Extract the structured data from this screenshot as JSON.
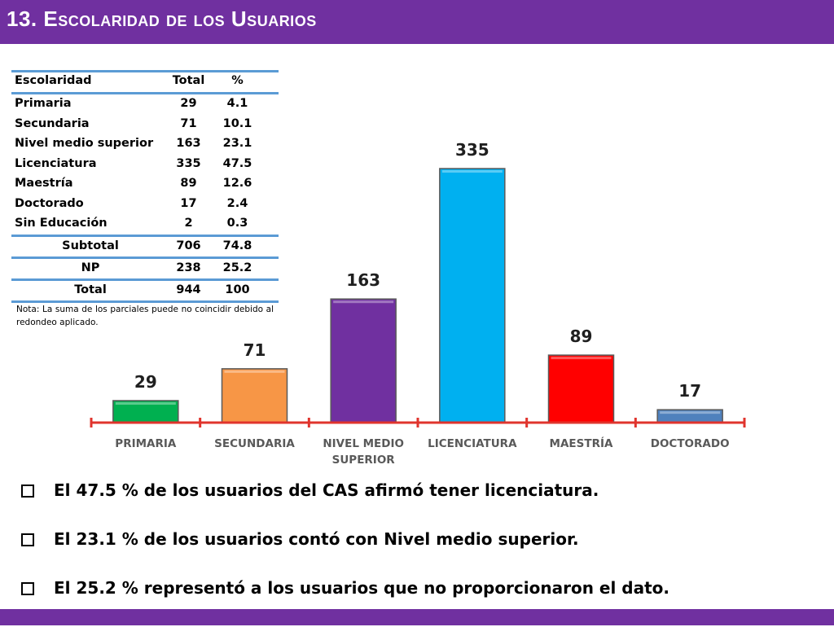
{
  "header": {
    "number": "13.",
    "title": "Escolaridad de los Usuarios"
  },
  "colors": {
    "bar_purple": "#7030a0",
    "table_rule": "#5b9bd5",
    "axis": "#e0342d",
    "category_label": "#595959"
  },
  "table": {
    "headers": [
      "Escolaridad",
      "Total",
      "%"
    ],
    "rows": [
      [
        "Primaria",
        "29",
        "4.1"
      ],
      [
        "Secundaria",
        "71",
        "10.1"
      ],
      [
        "Nivel medio superior",
        "163",
        "23.1"
      ],
      [
        "Licenciatura",
        "335",
        "47.5"
      ],
      [
        "Maestría",
        "89",
        "12.6"
      ],
      [
        "Doctorado",
        "17",
        "2.4"
      ],
      [
        "Sin Educación",
        "2",
        "0.3"
      ]
    ],
    "subtotal": [
      "Subtotal",
      "706",
      "74.8"
    ],
    "np": [
      "NP",
      "238",
      "25.2"
    ],
    "total": [
      "Total",
      "944",
      "100"
    ],
    "note": "Nota: La suma de los parciales puede no coincidir debido al redondeo aplicado."
  },
  "chart_data": {
    "type": "bar",
    "categories": [
      "PRIMARIA",
      "SECUNDARIA",
      "NIVEL MEDIO SUPERIOR",
      "LICENCIATURA",
      "MAESTRÍA",
      "DOCTORADO"
    ],
    "category_lines": [
      [
        "PRIMARIA"
      ],
      [
        "SECUNDARIA"
      ],
      [
        "NIVEL MEDIO",
        "SUPERIOR"
      ],
      [
        "LICENCIATURA"
      ],
      [
        "MAESTRÍA"
      ],
      [
        "DOCTORADO"
      ]
    ],
    "values": [
      29,
      71,
      163,
      335,
      89,
      17
    ],
    "data_labels": [
      "29",
      "71",
      "163",
      "335",
      "89",
      "17"
    ],
    "bar_colors": [
      "#00b050",
      "#f79646",
      "#7030a0",
      "#00b0f0",
      "#ff0000",
      "#4f81bd"
    ],
    "title": "",
    "xlabel": "",
    "ylabel": "",
    "ylim": [
      0,
      335
    ],
    "grid": false,
    "legend": "none"
  },
  "bullets": [
    "El 47.5 % de los usuarios del CAS afirmó tener licenciatura.",
    "El 23.1 % de los usuarios contó con Nivel medio superior.",
    "El 25.2 % representó a los usuarios que no proporcionaron el dato."
  ]
}
